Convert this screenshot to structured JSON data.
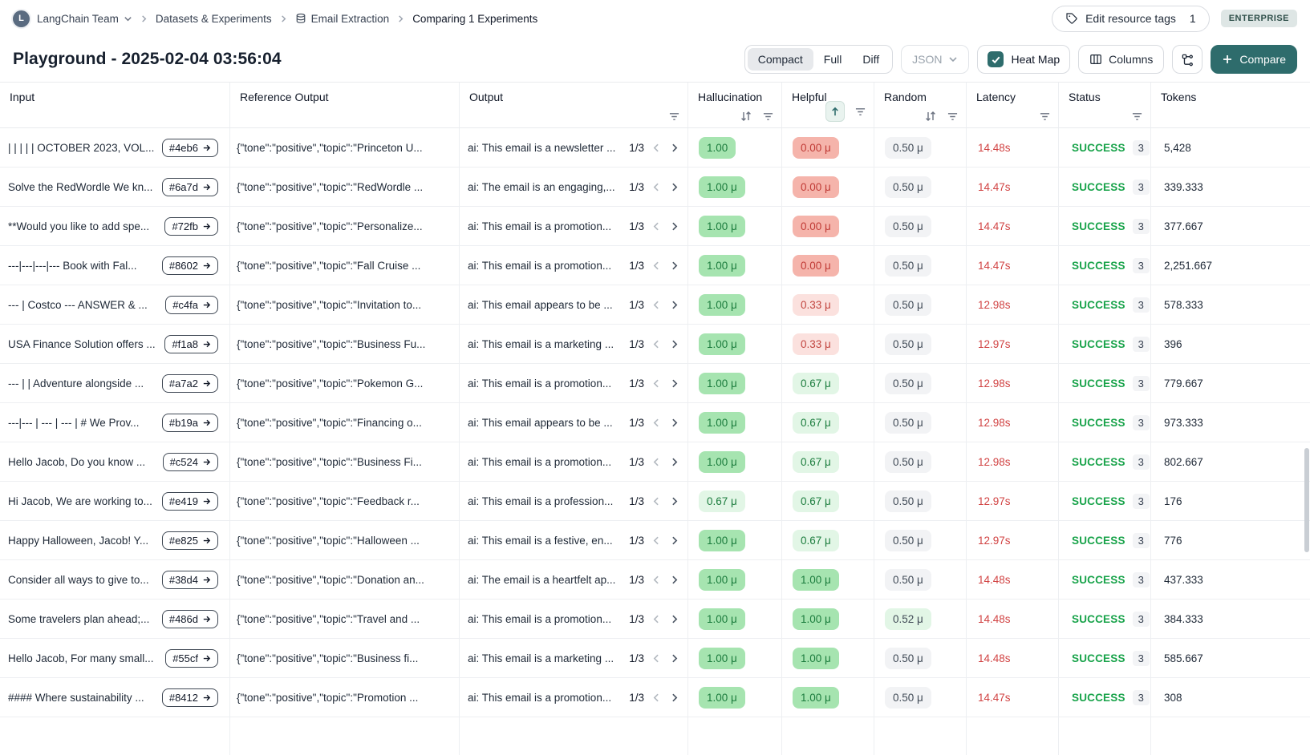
{
  "breadcrumb": {
    "avatar_initial": "L",
    "team": "LangChain Team",
    "section": "Datasets & Experiments",
    "dataset": "Email Extraction",
    "current": "Comparing 1 Experiments"
  },
  "header": {
    "edit_tags_label": "Edit resource tags",
    "edit_tags_count": "1",
    "plan_badge": "ENTERPRISE",
    "title": "Playground - 2025-02-04 03:56:04"
  },
  "toolbar": {
    "view_modes": {
      "compact": "Compact",
      "full": "Full",
      "diff": "Diff"
    },
    "active_view": "Compact",
    "format_select": "JSON",
    "heatmap_label": "Heat Map",
    "heatmap_checked": true,
    "columns_label": "Columns",
    "compare_label": "Compare"
  },
  "colors": {
    "accent_teal": "#2e6c6c",
    "success_green": "#18a34a",
    "latency_red": "#d14343",
    "heat_green": "#a6e4b0",
    "heat_green_light": "#e2f6e6",
    "heat_pink": "#fbe1de",
    "heat_red": "#f5b4ab",
    "neutral_pill": "#f2f3f5"
  },
  "table": {
    "pager_label": "1/3",
    "columns": [
      {
        "label": "Input"
      },
      {
        "label": "Reference Output"
      },
      {
        "label": "Output"
      },
      {
        "label": "Hallucination"
      },
      {
        "label": "Helpful"
      },
      {
        "label": "Random"
      },
      {
        "label": "Latency"
      },
      {
        "label": "Status"
      },
      {
        "label": "Tokens"
      }
    ],
    "rows": [
      {
        "input": "| | | | | OCTOBER 2023, VOL...",
        "example_id": "#4eb6",
        "reference": "{\"tone\":\"positive\",\"topic\":\"Princeton U...",
        "output": "ai: This email is a newsletter ...",
        "hallucination": "1.00",
        "hallucination_level": "green",
        "helpful": "0.00 μ",
        "helpful_level": "red",
        "random": "0.50 μ",
        "random_level": "gray",
        "latency": "14.48s",
        "status": "SUCCESS",
        "runs": "3",
        "tokens": "5,428"
      },
      {
        "input": "Solve the RedWordle We kn...",
        "example_id": "#6a7d",
        "reference": "{\"tone\":\"positive\",\"topic\":\"RedWordle ...",
        "output": "ai: The email is an engaging,...",
        "hallucination": "1.00 μ",
        "hallucination_level": "green",
        "helpful": "0.00 μ",
        "helpful_level": "red",
        "random": "0.50 μ",
        "random_level": "gray",
        "latency": "14.47s",
        "status": "SUCCESS",
        "runs": "3",
        "tokens": "339.333"
      },
      {
        "input": "**Would you like to add spe...",
        "example_id": "#72fb",
        "reference": "{\"tone\":\"positive\",\"topic\":\"Personalize...",
        "output": "ai: This email is a promotion...",
        "hallucination": "1.00 μ",
        "hallucination_level": "green",
        "helpful": "0.00 μ",
        "helpful_level": "red",
        "random": "0.50 μ",
        "random_level": "gray",
        "latency": "14.47s",
        "status": "SUCCESS",
        "runs": "3",
        "tokens": "377.667"
      },
      {
        "input": "---|---|---|--- Book with Fal...",
        "example_id": "#8602",
        "reference": "{\"tone\":\"positive\",\"topic\":\"Fall Cruise ...",
        "output": "ai: This email is a promotion...",
        "hallucination": "1.00 μ",
        "hallucination_level": "green",
        "helpful": "0.00 μ",
        "helpful_level": "red",
        "random": "0.50 μ",
        "random_level": "gray",
        "latency": "14.47s",
        "status": "SUCCESS",
        "runs": "3",
        "tokens": "2,251.667"
      },
      {
        "input": "--- | Costco --- ANSWER & ...",
        "example_id": "#c4fa",
        "reference": "{\"tone\":\"positive\",\"topic\":\"Invitation to...",
        "output": "ai: This email appears to be ...",
        "hallucination": "1.00 μ",
        "hallucination_level": "green",
        "helpful": "0.33 μ",
        "helpful_level": "pink",
        "random": "0.50 μ",
        "random_level": "gray",
        "latency": "12.98s",
        "status": "SUCCESS",
        "runs": "3",
        "tokens": "578.333"
      },
      {
        "input": "USA Finance Solution offers ...",
        "example_id": "#f1a8",
        "reference": "{\"tone\":\"positive\",\"topic\":\"Business Fu...",
        "output": "ai: This email is a marketing ...",
        "hallucination": "1.00 μ",
        "hallucination_level": "green",
        "helpful": "0.33 μ",
        "helpful_level": "pink",
        "random": "0.50 μ",
        "random_level": "gray",
        "latency": "12.97s",
        "status": "SUCCESS",
        "runs": "3",
        "tokens": "396"
      },
      {
        "input": "--- | | Adventure alongside ...",
        "example_id": "#a7a2",
        "reference": "{\"tone\":\"positive\",\"topic\":\"Pokemon G...",
        "output": "ai: This email is a promotion...",
        "hallucination": "1.00 μ",
        "hallucination_level": "green",
        "helpful": "0.67 μ",
        "helpful_level": "green-light",
        "random": "0.50 μ",
        "random_level": "gray",
        "latency": "12.98s",
        "status": "SUCCESS",
        "runs": "3",
        "tokens": "779.667"
      },
      {
        "input": "---|--- | --- | --- | # We Prov...",
        "example_id": "#b19a",
        "reference": "{\"tone\":\"positive\",\"topic\":\"Financing o...",
        "output": "ai: This email appears to be ...",
        "hallucination": "1.00 μ",
        "hallucination_level": "green",
        "helpful": "0.67 μ",
        "helpful_level": "green-light",
        "random": "0.50 μ",
        "random_level": "gray",
        "latency": "12.98s",
        "status": "SUCCESS",
        "runs": "3",
        "tokens": "973.333"
      },
      {
        "input": "Hello Jacob, Do you know ...",
        "example_id": "#c524",
        "reference": "{\"tone\":\"positive\",\"topic\":\"Business Fi...",
        "output": "ai: This email is a promotion...",
        "hallucination": "1.00 μ",
        "hallucination_level": "green",
        "helpful": "0.67 μ",
        "helpful_level": "green-light",
        "random": "0.50 μ",
        "random_level": "gray",
        "latency": "12.98s",
        "status": "SUCCESS",
        "runs": "3",
        "tokens": "802.667"
      },
      {
        "input": "Hi Jacob, We are working to...",
        "example_id": "#e419",
        "reference": "{\"tone\":\"positive\",\"topic\":\"Feedback r...",
        "output": "ai: This email is a profession...",
        "hallucination": "0.67 μ",
        "hallucination_level": "green-light",
        "helpful": "0.67 μ",
        "helpful_level": "green-light",
        "random": "0.50 μ",
        "random_level": "gray",
        "latency": "12.97s",
        "status": "SUCCESS",
        "runs": "3",
        "tokens": "176"
      },
      {
        "input": "Happy Halloween, Jacob! Y...",
        "example_id": "#e825",
        "reference": "{\"tone\":\"positive\",\"topic\":\"Halloween ...",
        "output": "ai: This email is a festive, en...",
        "hallucination": "1.00 μ",
        "hallucination_level": "green",
        "helpful": "0.67 μ",
        "helpful_level": "green-light",
        "random": "0.50 μ",
        "random_level": "gray",
        "latency": "12.97s",
        "status": "SUCCESS",
        "runs": "3",
        "tokens": "776"
      },
      {
        "input": "Consider all ways to give to...",
        "example_id": "#38d4",
        "reference": "{\"tone\":\"positive\",\"topic\":\"Donation an...",
        "output": "ai: The email is a heartfelt ap...",
        "hallucination": "1.00 μ",
        "hallucination_level": "green",
        "helpful": "1.00 μ",
        "helpful_level": "green",
        "random": "0.50 μ",
        "random_level": "gray",
        "latency": "14.48s",
        "status": "SUCCESS",
        "runs": "3",
        "tokens": "437.333"
      },
      {
        "input": "Some travelers plan ahead;...",
        "example_id": "#486d",
        "reference": "{\"tone\":\"positive\",\"topic\":\"Travel and ...",
        "output": "ai: This email is a promotion...",
        "hallucination": "1.00 μ",
        "hallucination_level": "green",
        "helpful": "1.00 μ",
        "helpful_level": "green",
        "random": "0.52 μ",
        "random_level": "green-tint",
        "latency": "14.48s",
        "status": "SUCCESS",
        "runs": "3",
        "tokens": "384.333"
      },
      {
        "input": "Hello Jacob, For many small...",
        "example_id": "#55cf",
        "reference": "{\"tone\":\"positive\",\"topic\":\"Business fi...",
        "output": "ai: This email is a marketing ...",
        "hallucination": "1.00 μ",
        "hallucination_level": "green",
        "helpful": "1.00 μ",
        "helpful_level": "green",
        "random": "0.50 μ",
        "random_level": "gray",
        "latency": "14.48s",
        "status": "SUCCESS",
        "runs": "3",
        "tokens": "585.667"
      },
      {
        "input": "#### Where sustainability ...",
        "example_id": "#8412",
        "reference": "{\"tone\":\"positive\",\"topic\":\"Promotion ...",
        "output": "ai: This email is a promotion...",
        "hallucination": "1.00 μ",
        "hallucination_level": "green",
        "helpful": "1.00 μ",
        "helpful_level": "green",
        "random": "0.50 μ",
        "random_level": "gray",
        "latency": "14.47s",
        "status": "SUCCESS",
        "runs": "3",
        "tokens": "308"
      }
    ]
  }
}
